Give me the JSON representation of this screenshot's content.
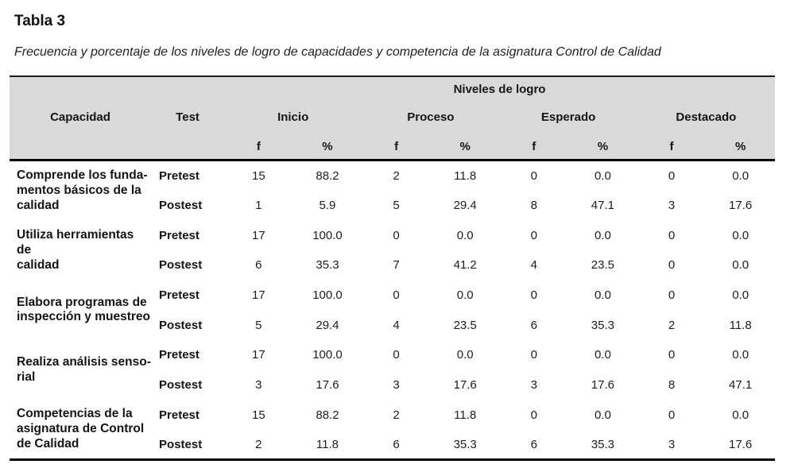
{
  "title": "Tabla 3",
  "caption": "Frecuencia y porcentaje de los niveles de logro de capacidades y competencia de la asignatura Control de Calidad",
  "colors": {
    "header_bg": "#d9d9d9",
    "rule": "#000000",
    "text": "#1d1d1d"
  },
  "table": {
    "spanner": "Niveles de logro",
    "col_capacidad": "Capacidad",
    "col_test": "Test",
    "levels": [
      "Inicio",
      "Proceso",
      "Esperado",
      "Destacado"
    ],
    "sub_f": "f",
    "sub_pct": "%",
    "groups": [
      {
        "capacity": "Comprende los funda-\nmentos básicos de la\ncalidad",
        "pretest": {
          "label": "Pretest",
          "values": [
            "15",
            "88.2",
            "2",
            "11.8",
            "0",
            "0.0",
            "0",
            "0.0"
          ]
        },
        "postest": {
          "label": "Postest",
          "values": [
            "1",
            "5.9",
            "5",
            "29.4",
            "8",
            "47.1",
            "3",
            "17.6"
          ]
        }
      },
      {
        "capacity": "Utiliza herramientas de\ncalidad",
        "pretest": {
          "label": "Pretest",
          "values": [
            "17",
            "100.0",
            "0",
            "0.0",
            "0",
            "0.0",
            "0",
            "0.0"
          ]
        },
        "postest": {
          "label": "Postest",
          "values": [
            "6",
            "35.3",
            "7",
            "41.2",
            "4",
            "23.5",
            "0",
            "0.0"
          ]
        }
      },
      {
        "capacity": "Elabora programas de\ninspección y muestreo",
        "pretest": {
          "label": "Pretest",
          "values": [
            "17",
            "100.0",
            "0",
            "0.0",
            "0",
            "0.0",
            "0",
            "0.0"
          ]
        },
        "postest": {
          "label": "Postest",
          "values": [
            "5",
            "29.4",
            "4",
            "23.5",
            "6",
            "35.3",
            "2",
            "11.8"
          ]
        }
      },
      {
        "capacity": "Realiza análisis senso-\nrial",
        "pretest": {
          "label": "Pretest",
          "values": [
            "17",
            "100.0",
            "0",
            "0.0",
            "0",
            "0.0",
            "0",
            "0.0"
          ]
        },
        "postest": {
          "label": "Postest",
          "values": [
            "3",
            "17.6",
            "3",
            "17.6",
            "3",
            "17.6",
            "8",
            "47.1"
          ]
        }
      },
      {
        "capacity": "Competencias de la\nasignatura de Control\nde Calidad",
        "pretest": {
          "label": "Pretest",
          "values": [
            "15",
            "88.2",
            "2",
            "11.8",
            "0",
            "0.0",
            "0",
            "0.0"
          ]
        },
        "postest": {
          "label": "Postest",
          "values": [
            "2",
            "11.8",
            "6",
            "35.3",
            "6",
            "35.3",
            "3",
            "17.6"
          ]
        }
      }
    ]
  }
}
